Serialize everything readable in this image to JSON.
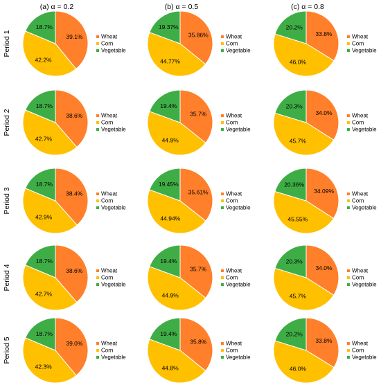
{
  "chart_data": {
    "type": "pie",
    "column_titles": [
      "(a) α = 0.2",
      "(b) α = 0.5",
      "(c) α = 0.8"
    ],
    "row_titles": [
      "Period 1",
      "Period 2",
      "Period 3",
      "Period 4",
      "Period 5"
    ],
    "categories": [
      "Wheat",
      "Corn",
      "Vegetable"
    ],
    "colors": {
      "Wheat": "#ff7f2a",
      "Corn": "#ffc000",
      "Vegetable": "#3fad46"
    },
    "legend_position": "right",
    "panels": [
      {
        "row": 0,
        "col": 0,
        "values": [
          39.1,
          42.2,
          18.7
        ],
        "labels": [
          "39.1%",
          "42.2%",
          "18.7%"
        ]
      },
      {
        "row": 0,
        "col": 1,
        "values": [
          35.86,
          44.77,
          19.37
        ],
        "labels": [
          "35.86%",
          "44.77%",
          "19.37%"
        ]
      },
      {
        "row": 0,
        "col": 2,
        "values": [
          33.8,
          46.0,
          20.2
        ],
        "labels": [
          "33.8%",
          "46.0%",
          "20.2%"
        ]
      },
      {
        "row": 1,
        "col": 0,
        "values": [
          38.6,
          42.7,
          18.7
        ],
        "labels": [
          "38.6%",
          "42.7%",
          "18.7%"
        ]
      },
      {
        "row": 1,
        "col": 1,
        "values": [
          35.7,
          44.9,
          19.4
        ],
        "labels": [
          "35.7%",
          "44.9%",
          "19.4%"
        ]
      },
      {
        "row": 1,
        "col": 2,
        "values": [
          34.0,
          45.7,
          20.3
        ],
        "labels": [
          "34.0%",
          "45.7%",
          "20.3%"
        ]
      },
      {
        "row": 2,
        "col": 0,
        "values": [
          38.4,
          42.9,
          18.7
        ],
        "labels": [
          "38.4%",
          "42.9%",
          "18.7%"
        ]
      },
      {
        "row": 2,
        "col": 1,
        "values": [
          35.61,
          44.94,
          19.45
        ],
        "labels": [
          "35.61%",
          "44.94%",
          "19.45%"
        ]
      },
      {
        "row": 2,
        "col": 2,
        "values": [
          34.09,
          45.55,
          20.36
        ],
        "labels": [
          "34.09%",
          "45.55%",
          "20.36%"
        ]
      },
      {
        "row": 3,
        "col": 0,
        "values": [
          38.6,
          42.7,
          18.7
        ],
        "labels": [
          "38.6%",
          "42.7%",
          "18.7%"
        ]
      },
      {
        "row": 3,
        "col": 1,
        "values": [
          35.7,
          44.9,
          19.4
        ],
        "labels": [
          "35.7%",
          "44.9%",
          "19.4%"
        ]
      },
      {
        "row": 3,
        "col": 2,
        "values": [
          34.0,
          45.7,
          20.3
        ],
        "labels": [
          "34.0%",
          "45.7%",
          "20.3%"
        ]
      },
      {
        "row": 4,
        "col": 0,
        "values": [
          39.0,
          42.3,
          18.7
        ],
        "labels": [
          "39.0%",
          "42.3%",
          "18.7%"
        ]
      },
      {
        "row": 4,
        "col": 1,
        "values": [
          35.8,
          44.8,
          19.4
        ],
        "labels": [
          "35.8%",
          "44.8%",
          "19.4%"
        ]
      },
      {
        "row": 4,
        "col": 2,
        "values": [
          33.8,
          46.0,
          20.2
        ],
        "labels": [
          "33.8%",
          "46.0%",
          "20.2%"
        ]
      }
    ]
  }
}
